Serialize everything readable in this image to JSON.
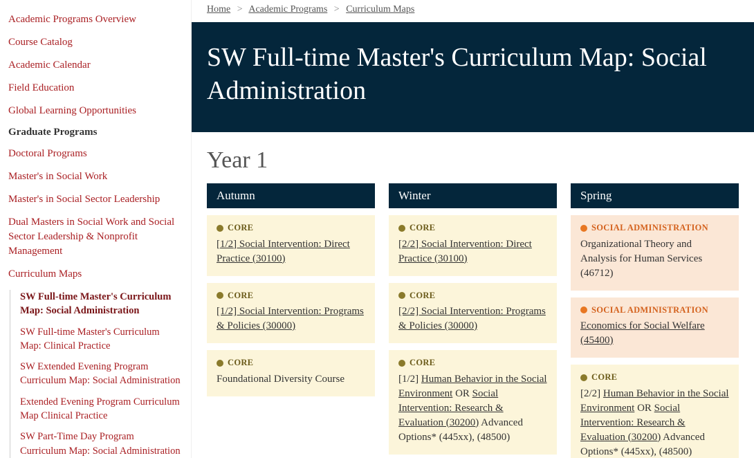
{
  "colors": {
    "linkRed": "#a91e22",
    "heroBg": "#04263b",
    "coreBg": "#fcf5da",
    "concentrationBg": "#fbe7d6",
    "coreDot": "#8a7a2b",
    "concentrationDot": "#e87722"
  },
  "sidebar": {
    "top": [
      "Academic Programs Overview",
      "Course Catalog",
      "Academic Calendar",
      "Field Education",
      "Global Learning Opportunities"
    ],
    "heading": "Graduate Programs",
    "grad": [
      "Doctoral Programs",
      "Master's in Social Work",
      "Master's in Social Sector Leadership",
      "Dual Masters in Social Work and Social Sector Leadership & Nonprofit Management",
      "Curriculum Maps"
    ],
    "sub": [
      "SW Full-time Master's Curriculum Map: Social Administration",
      "SW Full-time Master's Curriculum Map: Clinical Practice",
      "SW Extended Evening Program Curriculum Map: Social Administration",
      "Extended Evening Program Curriculum Map Clinical Practice",
      "SW Part-Time Day Program Curriculum Map: Social Administration"
    ],
    "activeSubIndex": 0
  },
  "breadcrumb": {
    "items": [
      "Home",
      "Academic Programs",
      "Curriculum Maps"
    ]
  },
  "hero": {
    "title": "SW Full-time Master's Curriculum Map: Social Administration"
  },
  "yearLabel": "Year 1",
  "badgeLabels": {
    "core": "CORE",
    "concentration": "SOCIAL ADMINISTRATION"
  },
  "terms": [
    {
      "name": "Autumn",
      "courses": [
        {
          "type": "core",
          "parts": [
            {
              "t": "link",
              "v": "[1/2] Social Intervention: Direct Practice (30100)"
            }
          ]
        },
        {
          "type": "core",
          "parts": [
            {
              "t": "link",
              "v": "[1/2] Social Intervention: Programs & Policies (30000)"
            }
          ]
        },
        {
          "type": "core",
          "parts": [
            {
              "t": "text",
              "v": "Foundational Diversity Course"
            }
          ]
        }
      ]
    },
    {
      "name": "Winter",
      "courses": [
        {
          "type": "core",
          "parts": [
            {
              "t": "link",
              "v": "[2/2] Social Intervention: Direct Practice (30100)"
            }
          ]
        },
        {
          "type": "core",
          "parts": [
            {
              "t": "link",
              "v": "[2/2] Social Intervention: Programs & Policies (30000)"
            }
          ]
        },
        {
          "type": "core",
          "parts": [
            {
              "t": "text",
              "v": "[1/2] "
            },
            {
              "t": "link",
              "v": "Human Behavior in the Social Environment"
            },
            {
              "t": "text",
              "v": " OR "
            },
            {
              "t": "link",
              "v": "Social Intervention: Research & Evaluation (30200)"
            },
            {
              "t": "text",
              "v": " Advanced Options* (445xx), (48500)"
            }
          ]
        }
      ]
    },
    {
      "name": "Spring",
      "courses": [
        {
          "type": "concentration",
          "parts": [
            {
              "t": "text",
              "v": "Organizational Theory and Analysis for Human Services (46712)"
            }
          ]
        },
        {
          "type": "concentration",
          "parts": [
            {
              "t": "link",
              "v": "Economics for Social Welfare (45400)"
            }
          ]
        },
        {
          "type": "core",
          "parts": [
            {
              "t": "text",
              "v": "[2/2] "
            },
            {
              "t": "link",
              "v": "Human Behavior in the Social Environment"
            },
            {
              "t": "text",
              "v": " OR "
            },
            {
              "t": "link",
              "v": "Social Intervention: Research & Evaluation (30200)"
            },
            {
              "t": "text",
              "v": " Advanced Options* (445xx), (48500)"
            }
          ]
        }
      ]
    }
  ]
}
